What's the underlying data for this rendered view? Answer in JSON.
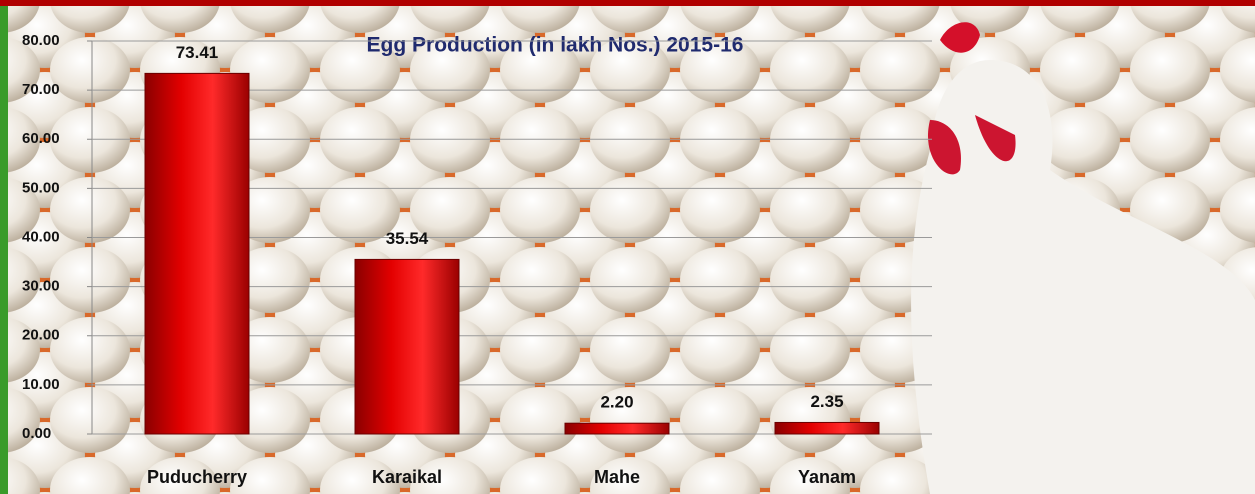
{
  "chart_data": {
    "type": "bar",
    "title": "Egg  Production (in lakh Nos.) 2015-16",
    "categories": [
      "Puducherry",
      "Karaikal",
      "Mahe",
      "Yanam"
    ],
    "values": [
      73.41,
      35.54,
      2.2,
      2.35
    ],
    "value_labels": [
      "73.41",
      "35.54",
      "2.20",
      "2.35"
    ],
    "color": "#d90000",
    "ylim": [
      0,
      80
    ],
    "yticks": [
      {
        "value": 0,
        "label": "0.00"
      },
      {
        "value": 10,
        "label": "10.00"
      },
      {
        "value": 20,
        "label": "20.00"
      },
      {
        "value": 30,
        "label": "30.00"
      },
      {
        "value": 40,
        "label": "40.00"
      },
      {
        "value": 50,
        "label": "50.00"
      },
      {
        "value": 60,
        "label": "60.00"
      },
      {
        "value": 70,
        "label": "70.00"
      },
      {
        "value": 80,
        "label": "80.00"
      }
    ],
    "grid": true
  }
}
